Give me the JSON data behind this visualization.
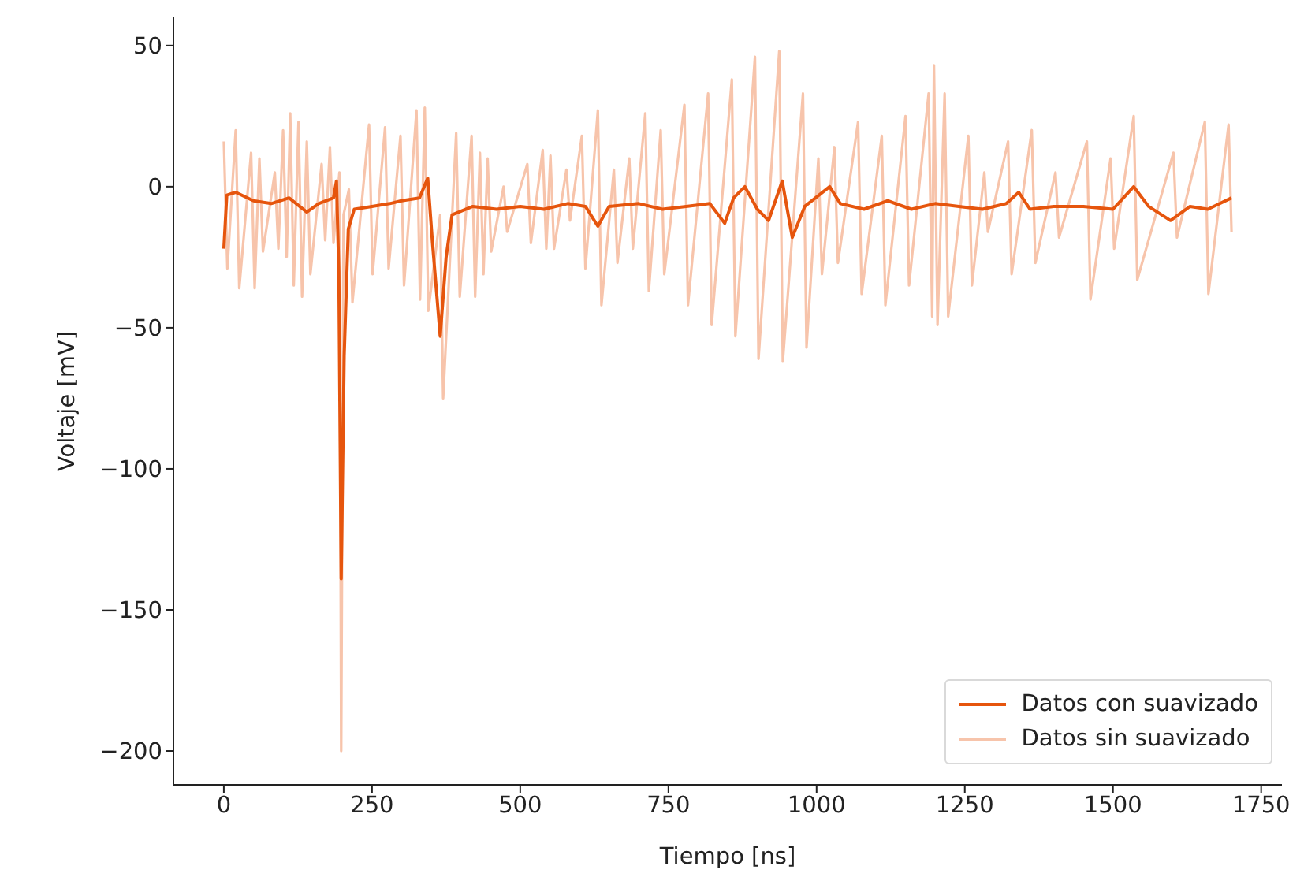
{
  "chart_data": {
    "type": "line",
    "xlabel": "Tiempo [ns]",
    "ylabel": "Voltaje [mV]",
    "xlim": [
      -85,
      1785
    ],
    "xticks": [
      0,
      250,
      500,
      750,
      1000,
      1250,
      1500,
      1750
    ],
    "ylim": [
      -212,
      60
    ],
    "yticks": [
      {
        "value": -200,
        "label": "−200"
      },
      {
        "value": -150,
        "label": "−150"
      },
      {
        "value": -100,
        "label": "−100"
      },
      {
        "value": -50,
        "label": "−50"
      },
      0,
      50
    ],
    "grid": false,
    "legend": "bottom right",
    "marker": "none",
    "line_style": "solid",
    "series": [
      {
        "name": "Datos con suavizado",
        "color": "#e6550d",
        "x": [
          0,
          5,
          20,
          50,
          80,
          110,
          140,
          160,
          185,
          190,
          194,
          198,
          203,
          210,
          220,
          250,
          280,
          300,
          330,
          344,
          352,
          365,
          375,
          385,
          420,
          460,
          500,
          540,
          580,
          610,
          631,
          650,
          700,
          740,
          780,
          820,
          845,
          860,
          879,
          900,
          919,
          942,
          959,
          980,
          1022,
          1040,
          1080,
          1120,
          1160,
          1200,
          1240,
          1280,
          1320,
          1341,
          1360,
          1400,
          1450,
          1500,
          1535,
          1560,
          1597,
          1630,
          1660,
          1700
        ],
        "values": [
          -22,
          -3,
          -2,
          -5,
          -6,
          -4,
          -9,
          -6,
          -4,
          2,
          -30,
          -139,
          -60,
          -15,
          -8,
          -7,
          -6,
          -5,
          -4,
          3,
          -20,
          -53,
          -25,
          -10,
          -7,
          -8,
          -7,
          -8,
          -6,
          -7,
          -14,
          -7,
          -6,
          -8,
          -7,
          -6,
          -13,
          -4,
          0,
          -8,
          -12,
          2,
          -18,
          -7,
          0,
          -6,
          -8,
          -5,
          -8,
          -6,
          -7,
          -8,
          -6,
          -2,
          -8,
          -7,
          -7,
          -8,
          0,
          -7,
          -12,
          -7,
          -8,
          -4
        ]
      },
      {
        "name": "Datos sin suavizado",
        "color": "#f7c4ab",
        "x": [
          0,
          6,
          20,
          26,
          46,
          52,
          60,
          66,
          86,
          92,
          100,
          106,
          112,
          118,
          126,
          132,
          140,
          146,
          165,
          171,
          179,
          185,
          195,
          198,
          202,
          211,
          217,
          245,
          251,
          272,
          278,
          298,
          304,
          325,
          331,
          339,
          345,
          365,
          370,
          392,
          398,
          418,
          424,
          432,
          438,
          445,
          451,
          472,
          478,
          512,
          518,
          538,
          544,
          551,
          557,
          578,
          584,
          604,
          610,
          631,
          637,
          658,
          664,
          684,
          690,
          711,
          717,
          737,
          743,
          777,
          783,
          817,
          823,
          857,
          863,
          896,
          902,
          937,
          943,
          977,
          983,
          1003,
          1009,
          1030,
          1036,
          1070,
          1076,
          1110,
          1116,
          1150,
          1156,
          1189,
          1195,
          1198,
          1204,
          1216,
          1222,
          1256,
          1262,
          1283,
          1289,
          1323,
          1329,
          1363,
          1369,
          1403,
          1409,
          1456,
          1462,
          1496,
          1502,
          1535,
          1541,
          1602,
          1608,
          1655,
          1661,
          1695,
          1700
        ],
        "values": [
          16,
          -29,
          20,
          -36,
          12,
          -36,
          10,
          -23,
          5,
          -22,
          20,
          -25,
          26,
          -35,
          23,
          -39,
          16,
          -31,
          8,
          -19,
          14,
          -20,
          5,
          -200,
          -10,
          -1,
          -41,
          22,
          -31,
          21,
          -29,
          18,
          -35,
          27,
          -40,
          28,
          -44,
          -10,
          -75,
          19,
          -39,
          18,
          -39,
          12,
          -31,
          10,
          -23,
          0,
          -16,
          8,
          -20,
          13,
          -22,
          11,
          -22,
          6,
          -12,
          18,
          -29,
          27,
          -42,
          6,
          -27,
          10,
          -22,
          26,
          -37,
          20,
          -31,
          29,
          -42,
          33,
          -49,
          38,
          -53,
          46,
          -61,
          48,
          -62,
          33,
          -57,
          10,
          -31,
          14,
          -27,
          23,
          -38,
          18,
          -42,
          25,
          -35,
          33,
          -46,
          43,
          -49,
          33,
          -46,
          18,
          -35,
          5,
          -16,
          16,
          -31,
          20,
          -27,
          5,
          -18,
          16,
          -40,
          10,
          -22,
          25,
          -33,
          12,
          -18,
          23,
          -38,
          22,
          -16
        ]
      }
    ]
  }
}
